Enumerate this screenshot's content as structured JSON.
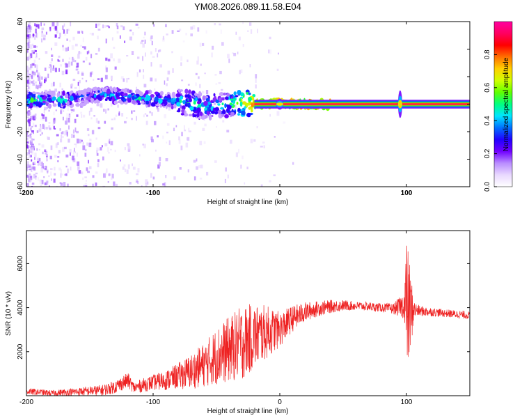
{
  "title": "YM08.2026.089.11.58.E04",
  "chart_data": [
    {
      "type": "heatmap",
      "name": "spectrogram",
      "xlabel": "Height of straight line (km)",
      "ylabel": "Frequency (Hz)",
      "xlim": [
        -200,
        150
      ],
      "ylim": [
        -60,
        60
      ],
      "xticks": [
        -200,
        -100,
        0,
        100
      ],
      "yticks": [
        -60,
        -40,
        -20,
        0,
        20,
        40,
        60
      ],
      "ytick_labels": [
        "-60",
        "-40",
        "-20",
        "0",
        "20",
        "40",
        "60"
      ],
      "xtick_labels": [
        "-200",
        "-100",
        "0",
        "100"
      ],
      "main_band": [
        {
          "x": -200,
          "f": 3.0,
          "amp": 0.45
        },
        {
          "x": -190,
          "f": 3.5,
          "amp": 0.45
        },
        {
          "x": -180,
          "f": 3.5,
          "amp": 0.35
        },
        {
          "x": -170,
          "f": 3.0,
          "amp": 0.45
        },
        {
          "x": -160,
          "f": 4.0,
          "amp": 0.3
        },
        {
          "x": -150,
          "f": 6.0,
          "amp": 0.3
        },
        {
          "x": -140,
          "f": 7.0,
          "amp": 0.35
        },
        {
          "x": -130,
          "f": 6.0,
          "amp": 0.4
        },
        {
          "x": -120,
          "f": 5.0,
          "amp": 0.35
        },
        {
          "x": -110,
          "f": 4.0,
          "amp": 0.4
        },
        {
          "x": -100,
          "f": 4.0,
          "amp": 0.4
        },
        {
          "x": -90,
          "f": 3.0,
          "amp": 0.35
        },
        {
          "x": -80,
          "f": 2.0,
          "amp": 0.4
        },
        {
          "x": -70,
          "f": 0.0,
          "amp": 0.45
        },
        {
          "x": -60,
          "f": -2.0,
          "amp": 0.4
        },
        {
          "x": -50,
          "f": -1.0,
          "amp": 0.4
        },
        {
          "x": -40,
          "f": 0.0,
          "amp": 0.45
        },
        {
          "x": -30,
          "f": 1.0,
          "amp": 0.6
        },
        {
          "x": -20,
          "f": 0.5,
          "amp": 0.75
        },
        {
          "x": -10,
          "f": 0.5,
          "amp": 0.8
        },
        {
          "x": 0,
          "f": 1.0,
          "amp": 0.85
        },
        {
          "x": 10,
          "f": 0.0,
          "amp": 0.9
        },
        {
          "x": 20,
          "f": 0.0,
          "amp": 0.9
        },
        {
          "x": 40,
          "f": 0.0,
          "amp": 0.95
        },
        {
          "x": 60,
          "f": 0.0,
          "amp": 0.95
        },
        {
          "x": 80,
          "f": 0.0,
          "amp": 0.95
        },
        {
          "x": 95,
          "f": 0.0,
          "amp": 0.7
        },
        {
          "x": 100,
          "f": 0.0,
          "amp": 0.95
        },
        {
          "x": 120,
          "f": 0.0,
          "amp": 0.95
        },
        {
          "x": 150,
          "f": 0.0,
          "amp": 0.95
        }
      ],
      "colorbar": {
        "label": "Normalized spectral amplitude",
        "range": [
          0,
          1
        ],
        "ticks": [
          0.0,
          0.2,
          0.4,
          0.6,
          0.8
        ],
        "tick_labels": [
          "0.0",
          "0.2",
          "0.4",
          "0.6",
          "0.8"
        ],
        "colormap": [
          "#ffffff",
          "#e9d8ff",
          "#b98cff",
          "#7000ff",
          "#2000ff",
          "#0070ff",
          "#00e5ff",
          "#00ff80",
          "#60ff00",
          "#d0ff00",
          "#ffd000",
          "#ff7000",
          "#ff0000",
          "#ff0060",
          "#ff00a0"
        ]
      }
    },
    {
      "type": "line",
      "name": "snr",
      "xlabel": "Height of straight line (km)",
      "ylabel": "SNR (10 * v/v)",
      "xlim": [
        -200,
        150
      ],
      "ylim": [
        0,
        7500
      ],
      "xticks": [
        -200,
        -100,
        0,
        100
      ],
      "xtick_labels": [
        "-200",
        "-100",
        "0",
        "100"
      ],
      "yticks": [
        2000,
        4000,
        6000
      ],
      "ytick_labels": [
        "2000",
        "4000",
        "6000"
      ],
      "color": "#ee2222",
      "series": [
        {
          "name": "SNR",
          "x": [
            -200,
            -180,
            -160,
            -140,
            -130,
            -120,
            -115,
            -110,
            -100,
            -90,
            -80,
            -70,
            -60,
            -50,
            -40,
            -30,
            -20,
            -10,
            0,
            10,
            20,
            30,
            40,
            50,
            60,
            70,
            80,
            90,
            98,
            100,
            102,
            106,
            110,
            120,
            130,
            140,
            150
          ],
          "y": [
            200,
            120,
            180,
            250,
            400,
            700,
            350,
            450,
            600,
            700,
            900,
            1100,
            1400,
            1800,
            2100,
            2400,
            2700,
            2900,
            3000,
            3500,
            3800,
            3950,
            4050,
            4100,
            4080,
            4050,
            4000,
            3950,
            4100,
            4200,
            3800,
            3900,
            3850,
            3800,
            3750,
            3700,
            3650
          ],
          "noise": [
            150,
            130,
            180,
            250,
            300,
            350,
            250,
            300,
            350,
            450,
            600,
            800,
            1000,
            1300,
            1500,
            1700,
            1500,
            1200,
            800,
            600,
            450,
            350,
            300,
            250,
            200,
            200,
            200,
            250,
            600,
            3000,
            2500,
            400,
            250,
            200,
            180,
            180,
            180
          ]
        }
      ]
    }
  ]
}
